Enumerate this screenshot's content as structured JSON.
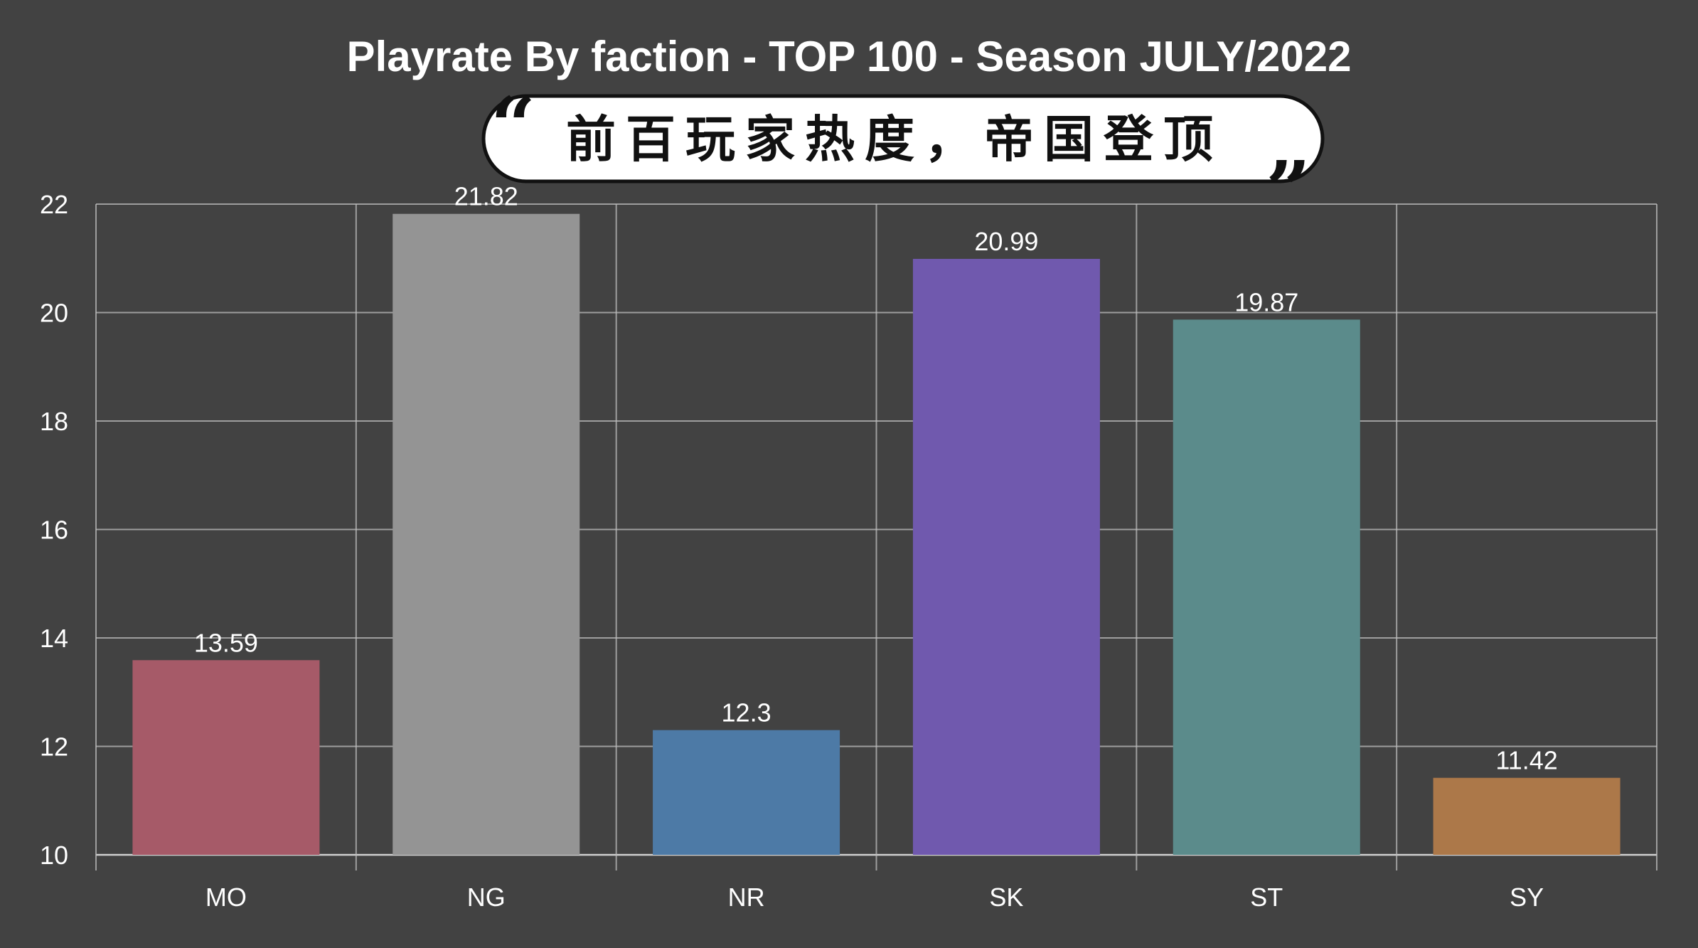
{
  "banner": {
    "text": "前百玩家热度，帝国登顶",
    "open_quote": "“",
    "close_quote": "”"
  },
  "chart_data": {
    "type": "bar",
    "title": "Playrate By faction - TOP 100 - Season JULY/2022",
    "categories": [
      "MO",
      "NG",
      "NR",
      "SK",
      "ST",
      "SY"
    ],
    "values": [
      13.59,
      21.82,
      12.3,
      20.99,
      19.87,
      11.42
    ],
    "value_labels": [
      "13.59",
      "21.82",
      "12.3",
      "20.99",
      "19.87",
      "11.42"
    ],
    "colors": [
      "#a65a68",
      "#949494",
      "#4d7aa6",
      "#7059ae",
      "#5b8b8b",
      "#ac7849"
    ],
    "ylim": [
      10,
      22
    ],
    "yticks": [
      10,
      12,
      14,
      16,
      18,
      20,
      22
    ],
    "xlabel": "",
    "ylabel": "",
    "grid": true,
    "legend": "none"
  }
}
